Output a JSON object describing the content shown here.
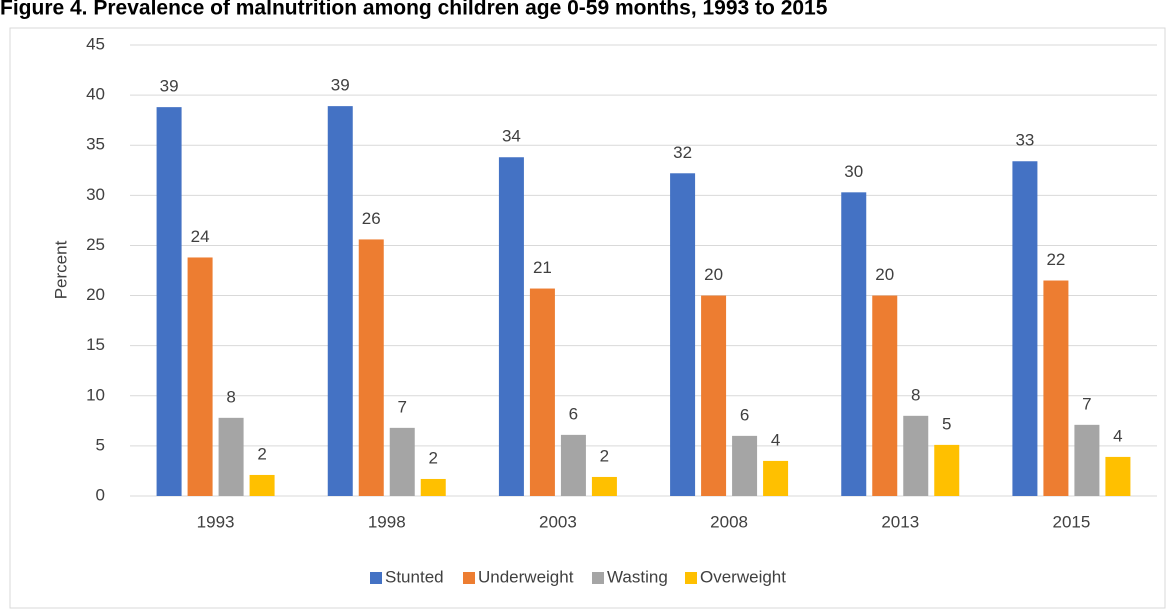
{
  "chart_data": {
    "type": "bar",
    "title": "Figure 4. Prevalence of malnutrition among children age 0-59 months, 1993 to 2015",
    "y_label": "Percent",
    "categories": [
      "1993",
      "1998",
      "2003",
      "2008",
      "2013",
      "2015"
    ],
    "series": [
      {
        "name": "Stunted",
        "color": "#4472c4",
        "values": [
          38.8,
          38.9,
          33.8,
          32.2,
          30.3,
          33.4
        ],
        "value_labels": [
          "39",
          "39",
          "34",
          "32",
          "30",
          "33"
        ]
      },
      {
        "name": "Underweight",
        "color": "#ed7d31",
        "values": [
          23.8,
          25.6,
          20.7,
          20.0,
          20.0,
          21.5
        ],
        "value_labels": [
          "24",
          "26",
          "21",
          "20",
          "20",
          "22"
        ]
      },
      {
        "name": "Wasting",
        "color": "#a5a5a5",
        "values": [
          7.8,
          6.8,
          6.1,
          6.0,
          8.0,
          7.1
        ],
        "value_labels": [
          "8",
          "7",
          "6",
          "6",
          "8",
          "7"
        ]
      },
      {
        "name": "Overweight",
        "color": "#ffc000",
        "values": [
          2.1,
          1.7,
          1.9,
          3.5,
          5.1,
          3.9
        ],
        "value_labels": [
          "2",
          "2",
          "2",
          "4",
          "5",
          "4"
        ]
      }
    ],
    "ylim": [
      0,
      45
    ],
    "yticks": [
      0,
      5,
      10,
      15,
      20,
      25,
      30,
      35,
      40,
      45
    ],
    "grid": true,
    "legend": "bottom"
  }
}
